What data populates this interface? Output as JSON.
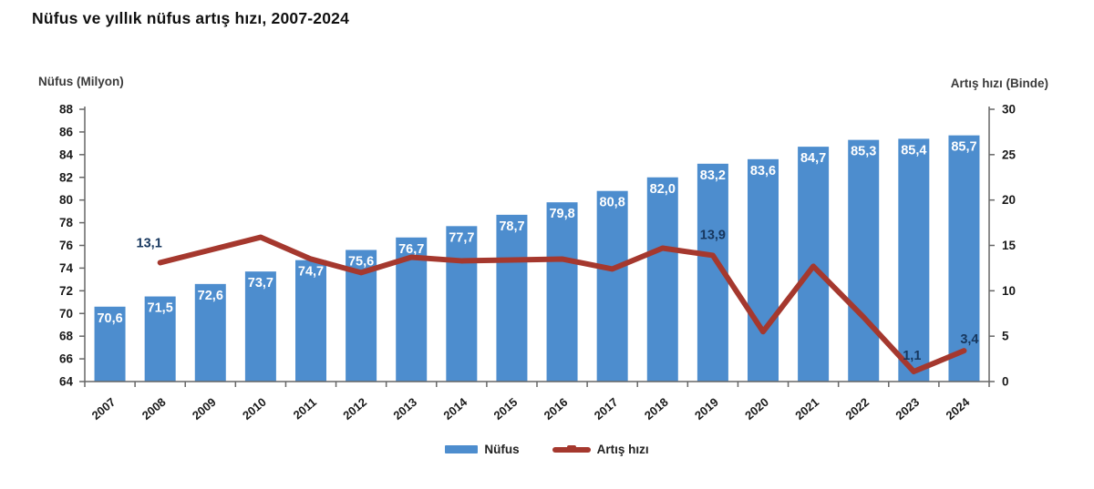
{
  "title": "Nüfus ve yıllık nüfus artış hızı, 2007-2024",
  "left_axis": {
    "label": "Nüfus (Milyon)",
    "min": 64,
    "max": 88,
    "step": 2
  },
  "right_axis": {
    "label": "Artış hızı (Binde)",
    "min": 0,
    "max": 30,
    "step": 5
  },
  "legend": {
    "items": [
      {
        "label": "Nüfus",
        "type": "bar"
      },
      {
        "label": "Artış hızı",
        "type": "line"
      }
    ]
  },
  "colors": {
    "bar": "#4D8DCE",
    "line": "#A5382E",
    "bar_value_label": "#FFFFFF",
    "line_value_label": "#17375E",
    "axis_line": "#666666",
    "tick_text": "#1A1A1A",
    "title_text": "#111111"
  },
  "chart_data": {
    "type": "combo-bar-line",
    "title": "Nüfus ve yıllık nüfus artış hızı, 2007-2024",
    "categories": [
      "2007",
      "2008",
      "2009",
      "2010",
      "2011",
      "2012",
      "2013",
      "2014",
      "2015",
      "2016",
      "2017",
      "2018",
      "2019",
      "2020",
      "2021",
      "2022",
      "2023",
      "2024"
    ],
    "series": [
      {
        "name": "Nüfus",
        "type": "bar",
        "axis": "left",
        "ylabel": "Nüfus (Milyon)",
        "ylim": [
          64,
          88
        ],
        "values": [
          70.6,
          71.5,
          72.6,
          73.7,
          74.7,
          75.6,
          76.7,
          77.7,
          78.7,
          79.8,
          80.8,
          82.0,
          83.2,
          83.6,
          84.7,
          85.3,
          85.4,
          85.7
        ],
        "value_labels": [
          "70,6",
          "71,5",
          "72,6",
          "73,7",
          "74,7",
          "75,6",
          "76,7",
          "77,7",
          "78,7",
          "79,8",
          "80,8",
          "82,0",
          "83,2",
          "83,6",
          "84,7",
          "85,3",
          "85,4",
          "85,7"
        ]
      },
      {
        "name": "Artış hızı",
        "type": "line",
        "axis": "right",
        "ylabel": "Artış hızı (Binde)",
        "ylim": [
          0,
          30
        ],
        "values": [
          null,
          13.1,
          14.5,
          15.9,
          13.5,
          12.0,
          13.7,
          13.3,
          13.4,
          13.5,
          12.4,
          14.7,
          13.9,
          5.5,
          12.7,
          7.1,
          1.1,
          3.4
        ],
        "point_labels": [
          null,
          "13,1",
          null,
          null,
          null,
          null,
          null,
          null,
          null,
          null,
          null,
          null,
          "13,9",
          null,
          null,
          null,
          "1,1",
          "3,4"
        ]
      }
    ],
    "grid": false,
    "legend_position": "bottom"
  }
}
